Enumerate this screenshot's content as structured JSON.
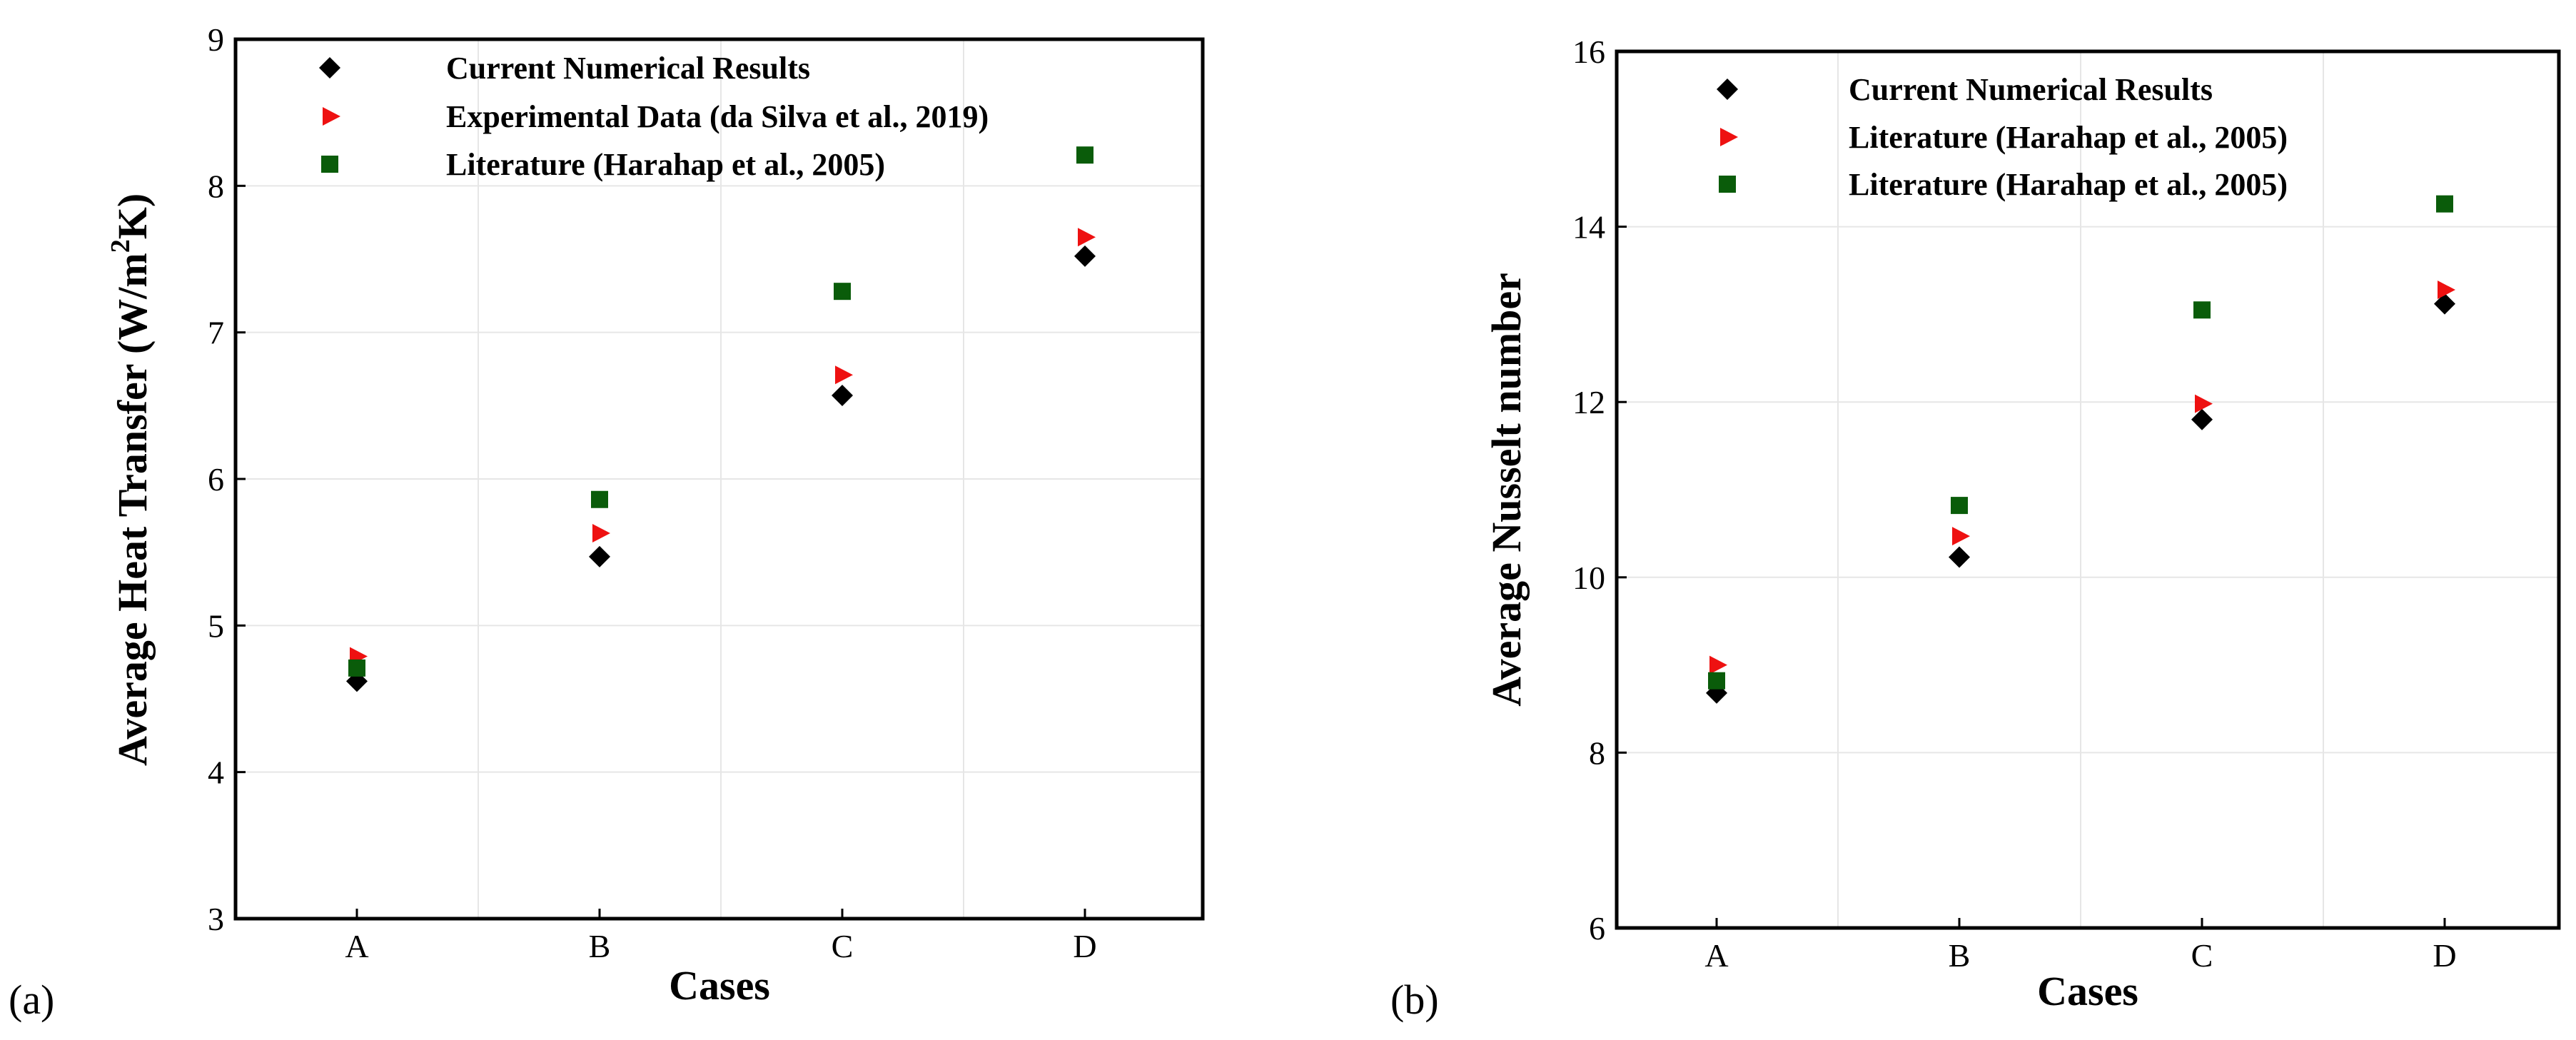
{
  "colors": {
    "current": "#000000",
    "experimental": "#ee1111",
    "literature": "#0a5c0a"
  },
  "chart_data": [
    {
      "type": "scatter",
      "panel_label": "(a)",
      "title": "",
      "xlabel": "Cases",
      "ylabel": "Average Heat Transfer (W/m²K)",
      "ylabel_parts": {
        "pre": "Average Heat Transfer (W/m",
        "sup": "2",
        "post": "K)"
      },
      "categories": [
        "A",
        "B",
        "C",
        "D"
      ],
      "ylim": [
        3,
        9
      ],
      "yticks": [
        3,
        4,
        5,
        6,
        7,
        8,
        9
      ],
      "series": [
        {
          "name": "Current Numerical Results",
          "marker": "diamond",
          "color_key": "current",
          "values": [
            4.62,
            5.47,
            6.57,
            7.52
          ]
        },
        {
          "name": "Experimental Data (da Silva et al., 2019)",
          "marker": "triangle-right",
          "color_key": "experimental",
          "values": [
            4.79,
            5.63,
            6.71,
            7.65
          ]
        },
        {
          "name": "Literature (Harahap et al., 2005)",
          "marker": "square",
          "color_key": "literature",
          "values": [
            4.71,
            5.86,
            7.28,
            8.21
          ]
        }
      ]
    },
    {
      "type": "scatter",
      "panel_label": "(b)",
      "title": "",
      "xlabel": "Cases",
      "ylabel": "Average Nusselt number",
      "categories": [
        "A",
        "B",
        "C",
        "D"
      ],
      "ylim": [
        6,
        16
      ],
      "yticks": [
        6,
        8,
        10,
        12,
        14,
        16
      ],
      "series": [
        {
          "name": "Current Numerical Results",
          "marker": "diamond",
          "color_key": "current",
          "values": [
            8.68,
            10.23,
            11.8,
            13.12
          ]
        },
        {
          "name": "Literature (Harahap et al., 2005)",
          "marker": "triangle-right",
          "color_key": "experimental",
          "values": [
            9.0,
            10.47,
            11.98,
            13.28
          ]
        },
        {
          "name": "Literature (Harahap et al., 2005)",
          "marker": "square",
          "color_key": "literature",
          "values": [
            8.82,
            10.82,
            13.05,
            14.26
          ]
        }
      ]
    }
  ]
}
